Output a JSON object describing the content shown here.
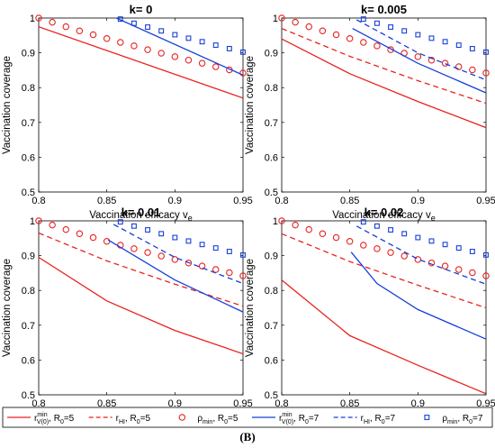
{
  "caption": "(B)",
  "colors": {
    "red": "#e8231f",
    "blue": "#1640d8",
    "axis": "#000000",
    "legend_border": "#000000"
  },
  "legend": {
    "entries": [
      {
        "key": "r_min_R5",
        "main": "r",
        "sup": "min",
        "sub": "V(0)",
        "tail": ", R",
        "tail_sub": "0",
        "tail_end": "=5",
        "style": "solid",
        "color": "red"
      },
      {
        "key": "r_HI_R5",
        "main": "r",
        "sub": "HI",
        "tail": ", R",
        "tail_sub": "0",
        "tail_end": "=5",
        "style": "dashed",
        "color": "red"
      },
      {
        "key": "rho_R5",
        "main": "ρ",
        "sub": "min",
        "tail": ", R",
        "tail_sub": "0",
        "tail_end": "=5",
        "style": "circle",
        "color": "red"
      },
      {
        "key": "r_min_R7",
        "main": "r",
        "sup": "min",
        "sub": "V(0)",
        "tail": ", R",
        "tail_sub": "0",
        "tail_end": "=7",
        "style": "solid",
        "color": "blue"
      },
      {
        "key": "r_HI_R7",
        "main": "r",
        "sub": "HI",
        "tail": ", R",
        "tail_sub": "0",
        "tail_end": "=7",
        "style": "dashed",
        "color": "blue"
      },
      {
        "key": "rho_R7",
        "main": "ρ",
        "sub": "min",
        "tail": ", R",
        "tail_sub": "0",
        "tail_end": "=7",
        "style": "square",
        "color": "blue"
      }
    ]
  },
  "chart_data": [
    {
      "type": "line",
      "title": "k= 0",
      "xlabel": "Vaccination efficacy v",
      "xlabel_sub": "e",
      "ylabel": "Vaccination coverage",
      "xlim": [
        0.8,
        0.95
      ],
      "ylim": [
        0.5,
        1.0
      ],
      "xticks": [
        "0.8",
        "0.85",
        "0.9",
        "0.95"
      ],
      "yticks": [
        "0.5",
        "0.6",
        "0.7",
        "0.8",
        "0.9",
        "1"
      ],
      "series": [
        {
          "key": "r_min_R5",
          "style": "solid",
          "color": "red",
          "x": [
            0.8,
            0.95
          ],
          "y": [
            0.975,
            0.77
          ]
        },
        {
          "key": "rho_R5",
          "style": "circle",
          "color": "red",
          "x": [
            0.8,
            0.81,
            0.82,
            0.83,
            0.84,
            0.85,
            0.86,
            0.87,
            0.88,
            0.89,
            0.9,
            0.91,
            0.92,
            0.93,
            0.94,
            0.95
          ],
          "y": [
            1.0,
            0.988,
            0.975,
            0.963,
            0.952,
            0.941,
            0.93,
            0.92,
            0.909,
            0.899,
            0.889,
            0.879,
            0.87,
            0.86,
            0.851,
            0.842
          ]
        },
        {
          "key": "r_min_R7",
          "style": "solid",
          "color": "blue",
          "x": [
            0.857,
            0.95
          ],
          "y": [
            1.0,
            0.836
          ]
        },
        {
          "key": "rho_R7",
          "style": "square",
          "color": "blue",
          "x": [
            0.86,
            0.87,
            0.88,
            0.89,
            0.9,
            0.91,
            0.92,
            0.93,
            0.94,
            0.95
          ],
          "y": [
            0.997,
            0.985,
            0.974,
            0.963,
            0.952,
            0.942,
            0.932,
            0.922,
            0.912,
            0.902
          ]
        }
      ]
    },
    {
      "type": "line",
      "title": "k= 0.005",
      "xlabel": "Vaccination efficacy v",
      "xlabel_sub": "e",
      "ylabel": "Vaccination coverage",
      "xlim": [
        0.8,
        0.95
      ],
      "ylim": [
        0.5,
        1.0
      ],
      "xticks": [
        "0.8",
        "0.85",
        "0.9",
        "0.95"
      ],
      "yticks": [
        "0.5",
        "0.6",
        "0.7",
        "0.8",
        "0.9",
        "1"
      ],
      "series": [
        {
          "key": "r_min_R5",
          "style": "solid",
          "color": "red",
          "x": [
            0.8,
            0.85,
            0.9,
            0.95
          ],
          "y": [
            0.94,
            0.84,
            0.76,
            0.685
          ]
        },
        {
          "key": "r_HI_R5",
          "style": "dashed",
          "color": "red",
          "x": [
            0.8,
            0.85,
            0.9,
            0.95
          ],
          "y": [
            0.97,
            0.89,
            0.82,
            0.755
          ]
        },
        {
          "key": "rho_R5",
          "style": "circle",
          "color": "red",
          "x": [
            0.8,
            0.81,
            0.82,
            0.83,
            0.84,
            0.85,
            0.86,
            0.87,
            0.88,
            0.89,
            0.9,
            0.91,
            0.92,
            0.93,
            0.94,
            0.95
          ],
          "y": [
            1.0,
            0.988,
            0.975,
            0.963,
            0.952,
            0.941,
            0.93,
            0.92,
            0.909,
            0.899,
            0.889,
            0.879,
            0.87,
            0.86,
            0.851,
            0.842
          ]
        },
        {
          "key": "r_min_R7",
          "style": "solid",
          "color": "blue",
          "x": [
            0.852,
            0.9,
            0.95
          ],
          "y": [
            0.97,
            0.87,
            0.785
          ]
        },
        {
          "key": "r_HI_R7",
          "style": "dashed",
          "color": "blue",
          "x": [
            0.855,
            0.9,
            0.95
          ],
          "y": [
            0.995,
            0.9,
            0.822
          ]
        },
        {
          "key": "rho_R7",
          "style": "square",
          "color": "blue",
          "x": [
            0.86,
            0.87,
            0.88,
            0.89,
            0.9,
            0.91,
            0.92,
            0.93,
            0.94,
            0.95
          ],
          "y": [
            0.997,
            0.985,
            0.974,
            0.963,
            0.952,
            0.942,
            0.932,
            0.922,
            0.912,
            0.902
          ]
        }
      ]
    },
    {
      "type": "line",
      "title": "k= 0.01",
      "xlabel": "Vaccination efficacy v",
      "xlabel_sub": "e",
      "ylabel": "Vaccination coverage",
      "xlim": [
        0.8,
        0.95
      ],
      "ylim": [
        0.5,
        1.0
      ],
      "xticks": [
        "0.8",
        "0.85",
        "0.9",
        "0.95"
      ],
      "yticks": [
        "0.5",
        "0.6",
        "0.7",
        "0.8",
        "0.9",
        "1"
      ],
      "series": [
        {
          "key": "r_min_R5",
          "style": "solid",
          "color": "red",
          "x": [
            0.8,
            0.85,
            0.9,
            0.95
          ],
          "y": [
            0.895,
            0.77,
            0.685,
            0.618
          ]
        },
        {
          "key": "r_HI_R5",
          "style": "dashed",
          "color": "red",
          "x": [
            0.8,
            0.85,
            0.9,
            0.95
          ],
          "y": [
            0.965,
            0.885,
            0.818,
            0.755
          ]
        },
        {
          "key": "rho_R5",
          "style": "circle",
          "color": "red",
          "x": [
            0.8,
            0.81,
            0.82,
            0.83,
            0.84,
            0.85,
            0.86,
            0.87,
            0.88,
            0.89,
            0.9,
            0.91,
            0.92,
            0.93,
            0.94,
            0.95
          ],
          "y": [
            1.0,
            0.988,
            0.975,
            0.963,
            0.952,
            0.941,
            0.93,
            0.92,
            0.909,
            0.899,
            0.889,
            0.879,
            0.87,
            0.86,
            0.851,
            0.842
          ]
        },
        {
          "key": "r_min_R7",
          "style": "solid",
          "color": "blue",
          "x": [
            0.851,
            0.9,
            0.95
          ],
          "y": [
            0.945,
            0.83,
            0.738
          ]
        },
        {
          "key": "r_HI_R7",
          "style": "dashed",
          "color": "blue",
          "x": [
            0.855,
            0.9,
            0.95
          ],
          "y": [
            0.99,
            0.895,
            0.82
          ]
        },
        {
          "key": "rho_R7",
          "style": "square",
          "color": "blue",
          "x": [
            0.86,
            0.87,
            0.88,
            0.89,
            0.9,
            0.91,
            0.92,
            0.93,
            0.94,
            0.95
          ],
          "y": [
            0.997,
            0.985,
            0.974,
            0.963,
            0.952,
            0.942,
            0.932,
            0.922,
            0.912,
            0.902
          ]
        }
      ]
    },
    {
      "type": "line",
      "title": "k= 0.02",
      "xlabel": "Vaccination efficacy v",
      "xlabel_sub": "e",
      "ylabel": "Vaccination coverage",
      "xlim": [
        0.8,
        0.95
      ],
      "ylim": [
        0.5,
        1.0
      ],
      "xticks": [
        "0.8",
        "0.85",
        "0.9",
        "0.95"
      ],
      "yticks": [
        "0.5",
        "0.6",
        "0.7",
        "0.8",
        "0.9",
        "1"
      ],
      "series": [
        {
          "key": "r_min_R5",
          "style": "solid",
          "color": "red",
          "x": [
            0.8,
            0.85,
            0.9,
            0.95
          ],
          "y": [
            0.83,
            0.67,
            0.585,
            0.503
          ]
        },
        {
          "key": "r_HI_R5",
          "style": "dashed",
          "color": "red",
          "x": [
            0.8,
            0.85,
            0.9,
            0.95
          ],
          "y": [
            0.963,
            0.883,
            0.815,
            0.75
          ]
        },
        {
          "key": "rho_R5",
          "style": "circle",
          "color": "red",
          "x": [
            0.8,
            0.81,
            0.82,
            0.83,
            0.84,
            0.85,
            0.86,
            0.87,
            0.88,
            0.89,
            0.9,
            0.91,
            0.92,
            0.93,
            0.94,
            0.95
          ],
          "y": [
            1.0,
            0.988,
            0.975,
            0.963,
            0.952,
            0.941,
            0.93,
            0.92,
            0.909,
            0.899,
            0.889,
            0.879,
            0.87,
            0.86,
            0.851,
            0.842
          ]
        },
        {
          "key": "r_min_R7",
          "style": "solid",
          "color": "blue",
          "x": [
            0.851,
            0.87,
            0.9,
            0.95
          ],
          "y": [
            0.91,
            0.82,
            0.745,
            0.66
          ]
        },
        {
          "key": "r_HI_R7",
          "style": "dashed",
          "color": "blue",
          "x": [
            0.855,
            0.9,
            0.95
          ],
          "y": [
            0.985,
            0.89,
            0.818
          ]
        },
        {
          "key": "rho_R7",
          "style": "square",
          "color": "blue",
          "x": [
            0.86,
            0.87,
            0.88,
            0.89,
            0.9,
            0.91,
            0.92,
            0.93,
            0.94,
            0.95
          ],
          "y": [
            0.997,
            0.985,
            0.974,
            0.963,
            0.952,
            0.942,
            0.932,
            0.922,
            0.912,
            0.902
          ]
        }
      ]
    }
  ]
}
